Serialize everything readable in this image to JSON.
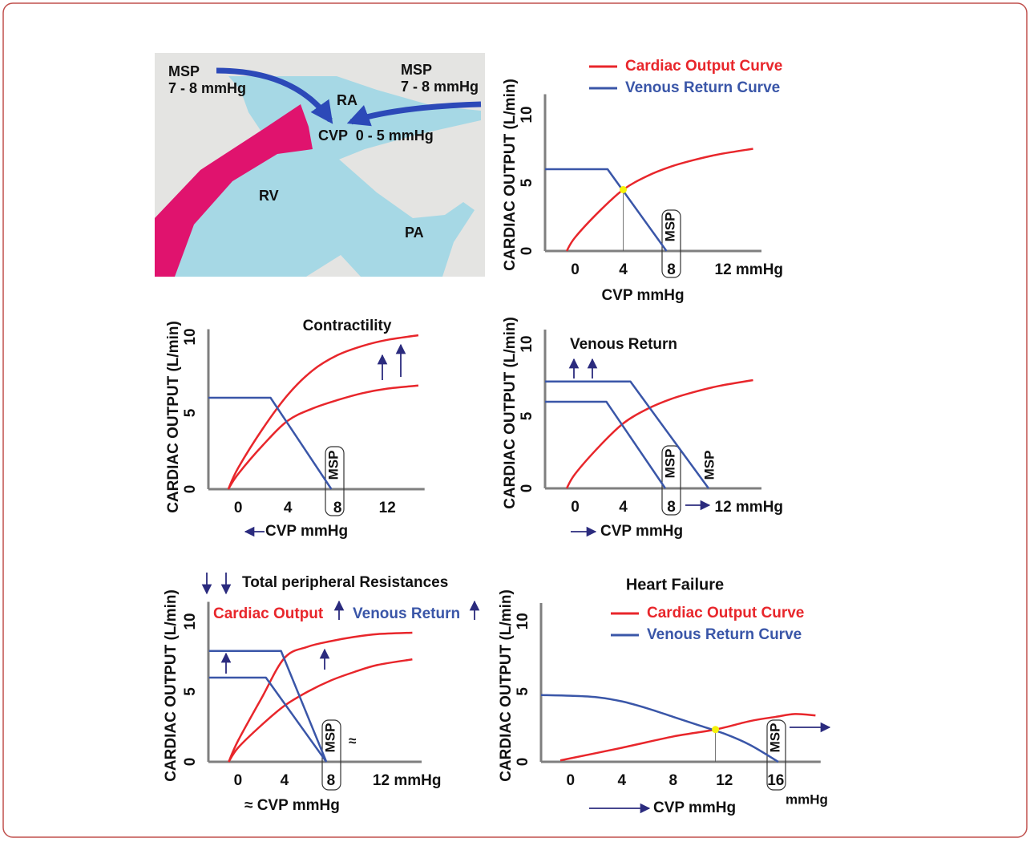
{
  "diagram": {
    "labels": [
      "MSP",
      "7 - 8 mmHg",
      "MSP",
      "7 - 8 mmHg",
      "RA",
      "CVP  0 - 5 mmHg",
      "RV",
      "PA"
    ]
  },
  "chart_data": [
    {
      "type": "line",
      "ylabel": "CARDIAC OUTPUT (L/min)",
      "xlabel": "CVP mmHg",
      "xlim": [
        -2.5,
        15.5
      ],
      "ylim": [
        0,
        11.5
      ],
      "xticks": [
        0,
        4,
        8,
        {
          "value": 12,
          "label": "12 mmHg"
        }
      ],
      "yticks": [
        0,
        5,
        10
      ],
      "legend": "top",
      "series": [
        {
          "name": "Cardiac Output Curve",
          "color": "#e8262b",
          "x": [
            -0.7,
            0,
            2,
            4,
            6,
            8,
            10,
            12,
            14.8
          ],
          "values": [
            0,
            1,
            2.9,
            4.5,
            5.5,
            6.2,
            6.7,
            7.1,
            7.5
          ]
        },
        {
          "name": "Venous Return Curve",
          "color": "#3a56a8",
          "x": [
            -2.5,
            2.7,
            7.6
          ],
          "values": [
            6,
            6,
            0
          ]
        }
      ],
      "equilibrium": {
        "x": 4,
        "y": 4.5
      },
      "annotations": [
        "MSP"
      ]
    },
    {
      "type": "line",
      "title": "Contractility",
      "ylabel": "CARDIAC OUTPUT (L/min)",
      "xlabel": "CVP mmHg",
      "xlim": [
        -2.4,
        15
      ],
      "ylim": [
        0,
        10.5
      ],
      "xticks": [
        0,
        4,
        8,
        12
      ],
      "yticks": [
        0,
        5,
        10
      ],
      "series": [
        {
          "color": "#e8262b",
          "x": [
            -0.8,
            0,
            2,
            4,
            6,
            8,
            10,
            12,
            14.5
          ],
          "values": [
            0,
            1,
            2.9,
            4.5,
            5.3,
            5.85,
            6.3,
            6.6,
            6.8
          ]
        },
        {
          "color": "#e8262b",
          "x": [
            -0.8,
            0,
            2,
            4,
            6,
            8,
            10,
            12,
            14.5
          ],
          "values": [
            0,
            1.4,
            4,
            6.2,
            7.8,
            8.8,
            9.4,
            9.8,
            10.1
          ]
        },
        {
          "color": "#3a56a8",
          "x": [
            -2.4,
            2.6,
            7.5
          ],
          "values": [
            6,
            6,
            0
          ]
        }
      ],
      "annotations": [
        "MSP"
      ]
    },
    {
      "type": "line",
      "title": "Venous Return",
      "ylabel": "CARDIAC OUTPUT (L/min)",
      "xlabel": "CVP mmHg",
      "xlim": [
        -2.5,
        15.5
      ],
      "ylim": [
        0,
        11
      ],
      "xticks": [
        0,
        4,
        8,
        {
          "value": 12,
          "label": "12 mmHg"
        }
      ],
      "yticks": [
        0,
        5,
        10
      ],
      "series": [
        {
          "color": "#e8262b",
          "x": [
            -0.7,
            0,
            2,
            4,
            6,
            8,
            10,
            12,
            14.8
          ],
          "values": [
            0,
            1,
            2.9,
            4.5,
            5.5,
            6.2,
            6.7,
            7.1,
            7.5
          ]
        },
        {
          "color": "#3a56a8",
          "x": [
            -2.5,
            2.6,
            7.5
          ],
          "values": [
            6,
            6,
            0
          ]
        },
        {
          "color": "#3a56a8",
          "x": [
            -2.5,
            4.6,
            11.1
          ],
          "values": [
            7.4,
            7.4,
            0
          ]
        }
      ],
      "annotations": [
        "MSP",
        "MSP"
      ]
    },
    {
      "type": "line",
      "title": "Total peripheral Resistances",
      "ylabel": "CARDIAC OUTPUT (L/min)",
      "xlabel": "≈ CVP mmHg",
      "xlim": [
        -2.55,
        15.8
      ],
      "ylim": [
        0,
        11.4
      ],
      "xticks": [
        0,
        4,
        8,
        {
          "value": 12,
          "label": "12 mmHg"
        }
      ],
      "yticks": [
        0,
        5,
        10
      ],
      "series": [
        {
          "color": "#e8262b",
          "x": [
            -0.8,
            0,
            2,
            4,
            6,
            8,
            10,
            12,
            15
          ],
          "values": [
            0,
            1.5,
            4.5,
            7.4,
            8.2,
            8.6,
            8.9,
            9.1,
            9.2
          ]
        },
        {
          "color": "#e8262b",
          "x": [
            -0.8,
            0,
            2,
            4,
            6,
            8,
            10,
            12,
            15
          ],
          "values": [
            0,
            1,
            2.6,
            4,
            5,
            5.8,
            6.4,
            6.9,
            7.3
          ]
        },
        {
          "color": "#3a56a8",
          "x": [
            -2.5,
            2.4,
            7.6
          ],
          "values": [
            6,
            6,
            0
          ]
        },
        {
          "color": "#3a56a8",
          "x": [
            -2.5,
            3.7,
            7.6
          ],
          "values": [
            7.9,
            7.9,
            0
          ]
        }
      ],
      "annotations": [
        "Cardiac Output",
        "Venous Return",
        "MSP",
        "≈"
      ]
    },
    {
      "type": "line",
      "title": "Heart Failure",
      "ylabel": "CARDIAC OUTPUT (L/min)",
      "xlabel": "CVP mmHg",
      "xlim": [
        -2.3,
        19.5
      ],
      "ylim": [
        0,
        11.3
      ],
      "xticks": [
        0,
        4,
        8,
        12,
        16
      ],
      "yticks": [
        0,
        5,
        10
      ],
      "legend": "top",
      "series": [
        {
          "name": "Cardiac Output Curve",
          "color": "#e8262b",
          "x": [
            -0.8,
            4,
            8,
            11.3,
            14,
            16,
            17.5,
            19.1
          ],
          "values": [
            0.1,
            1,
            1.8,
            2.3,
            2.9,
            3.2,
            3.4,
            3.3
          ]
        },
        {
          "name": "Venous Return Curve",
          "color": "#3a56a8",
          "x": [
            -2.3,
            0,
            2,
            4,
            6,
            8,
            10,
            12,
            14,
            16.2
          ],
          "values": [
            4.75,
            4.7,
            4.6,
            4.3,
            3.8,
            3.2,
            2.6,
            2.0,
            1.2,
            0
          ]
        }
      ],
      "equilibrium": {
        "x": 11.3,
        "y": 2.3
      },
      "annotations": [
        "MSP",
        "mmHg"
      ]
    }
  ]
}
